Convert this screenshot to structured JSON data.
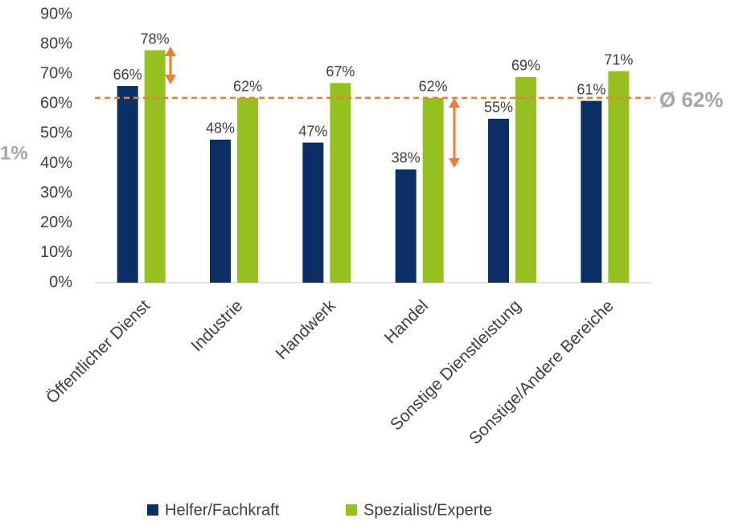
{
  "chart_data": {
    "type": "bar",
    "categories": [
      "Öffentlicher Dienst",
      "Industrie",
      "Handwerk",
      "Handel",
      "Sonstige Dienstleistung",
      "Sonstige/Andere Bereiche"
    ],
    "series": [
      {
        "name": "Helfer/Fachkraft",
        "color": "#0b3068",
        "values": [
          66,
          48,
          47,
          38,
          55,
          61
        ],
        "value_labels": [
          "66%",
          "48%",
          "47%",
          "38%",
          "55%",
          "61%"
        ]
      },
      {
        "name": "Spezialist/Experte",
        "color": "#95c11f",
        "values": [
          78,
          62,
          67,
          62,
          69,
          71
        ],
        "value_labels": [
          "78%",
          "62%",
          "67%",
          "62%",
          "69%",
          "71%"
        ]
      }
    ],
    "ylim": [
      0,
      90
    ],
    "yticks": [
      {
        "value": 0,
        "label": "0%"
      },
      {
        "value": 10,
        "label": "10%"
      },
      {
        "value": 20,
        "label": "20%"
      },
      {
        "value": 30,
        "label": "30%"
      },
      {
        "value": 40,
        "label": "40%"
      },
      {
        "value": 50,
        "label": "50%"
      },
      {
        "value": 60,
        "label": "60%"
      },
      {
        "value": 70,
        "label": "70%"
      },
      {
        "value": 80,
        "label": "80%"
      },
      {
        "value": 90,
        "label": "90%"
      }
    ],
    "average": {
      "value": 62,
      "label": "Ø 62%",
      "color": "#ed7d31"
    },
    "annotation": "1%"
  }
}
